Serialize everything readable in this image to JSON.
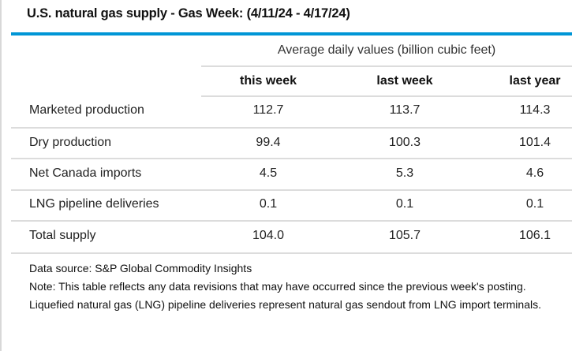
{
  "title": "U.S. natural gas supply - Gas Week: (4/11/24 - 4/17/24)",
  "subheader": "Average daily values (billion cubic feet)",
  "columns": [
    "this week",
    "last week",
    "last year"
  ],
  "rows": [
    {
      "label": "Marketed production",
      "values": [
        "112.7",
        "113.7",
        "114.3"
      ]
    },
    {
      "label": "Dry production",
      "values": [
        "99.4",
        "100.3",
        "101.4"
      ]
    },
    {
      "label": "Net Canada imports",
      "values": [
        "4.5",
        "5.3",
        "4.6"
      ]
    },
    {
      "label": "LNG pipeline deliveries",
      "values": [
        "0.1",
        "0.1",
        "0.1"
      ]
    },
    {
      "label": "Total supply",
      "values": [
        "104.0",
        "105.7",
        "106.1"
      ]
    }
  ],
  "footer": {
    "source": "Data source: S&P Global Commodity Insights",
    "note": "Note: This table reflects any data revisions that may have occurred since the previous week's posting. Liquefied natural gas (LNG) pipeline deliveries represent natural gas sendout from LNG import terminals."
  },
  "colors": {
    "accent": "#0096d6"
  }
}
